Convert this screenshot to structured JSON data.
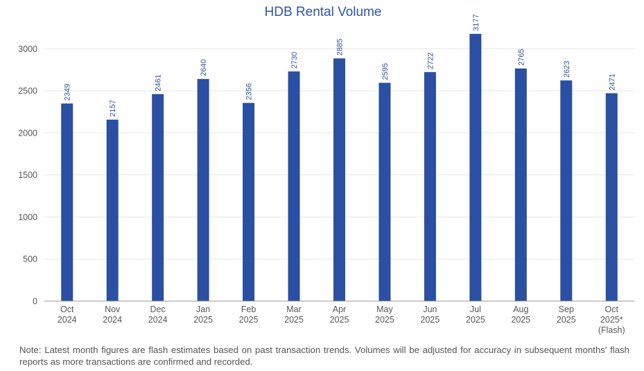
{
  "chart_data": {
    "type": "bar",
    "title": "HDB Rental Volume",
    "xlabel": "",
    "ylabel": "",
    "categories": [
      [
        "Oct",
        "2024"
      ],
      [
        "Nov",
        "2024"
      ],
      [
        "Dec",
        "2024"
      ],
      [
        "Jan",
        "2025"
      ],
      [
        "Feb",
        "2025"
      ],
      [
        "Mar",
        "2025"
      ],
      [
        "Apr",
        "2025"
      ],
      [
        "May",
        "2025"
      ],
      [
        "Jun",
        "2025"
      ],
      [
        "Jul",
        "2025"
      ],
      [
        "Aug",
        "2025"
      ],
      [
        "Sep",
        "2025"
      ],
      [
        "Oct",
        "2025*",
        "(Flash)"
      ]
    ],
    "values": [
      2349,
      2157,
      2461,
      2640,
      2356,
      2730,
      2885,
      2595,
      2722,
      3177,
      2765,
      2623,
      2471
    ],
    "ylim": [
      0,
      3250
    ],
    "yticks": [
      0,
      500,
      1000,
      1500,
      2000,
      2500,
      3000
    ],
    "grid": true,
    "legend": "none",
    "bar_color": "#2a4fa3",
    "data_label_color": "#2f55a4",
    "title_color": "#2f55a4"
  },
  "note": "Note: Latest month figures are flash estimates based on past transaction trends. Volumes will be adjusted for accuracy in subsequent months' flash reports as more transactions are confirmed and recorded."
}
